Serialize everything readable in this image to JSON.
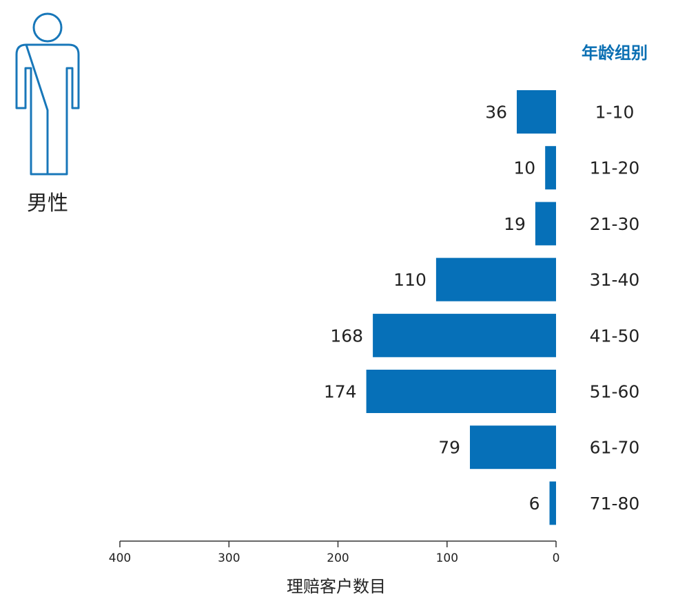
{
  "gender_label": "男性",
  "icon": "male-person-icon",
  "colors": {
    "bar": "#0670b8",
    "header": "#0a6fb3",
    "text": "#222222",
    "axis": "#333333",
    "icon": "#1877b9"
  },
  "chart_data": {
    "type": "bar",
    "orientation": "horizontal",
    "direction": "right-to-left",
    "categories": [
      "1-10",
      "11-20",
      "21-30",
      "31-40",
      "41-50",
      "51-60",
      "61-70",
      "71-80"
    ],
    "values": [
      36,
      10,
      19,
      110,
      168,
      174,
      79,
      6
    ],
    "data_labels": [
      "36",
      "10",
      "19",
      "110",
      "168",
      "174",
      "79",
      "6"
    ],
    "category_header": "年龄组别",
    "xlabel": "理赔客户数目",
    "xlim": [
      0,
      400
    ],
    "xticks": [
      400,
      300,
      200,
      100,
      0
    ],
    "xtick_labels": [
      "400",
      "300",
      "200",
      "100",
      "0"
    ],
    "grid": false
  }
}
